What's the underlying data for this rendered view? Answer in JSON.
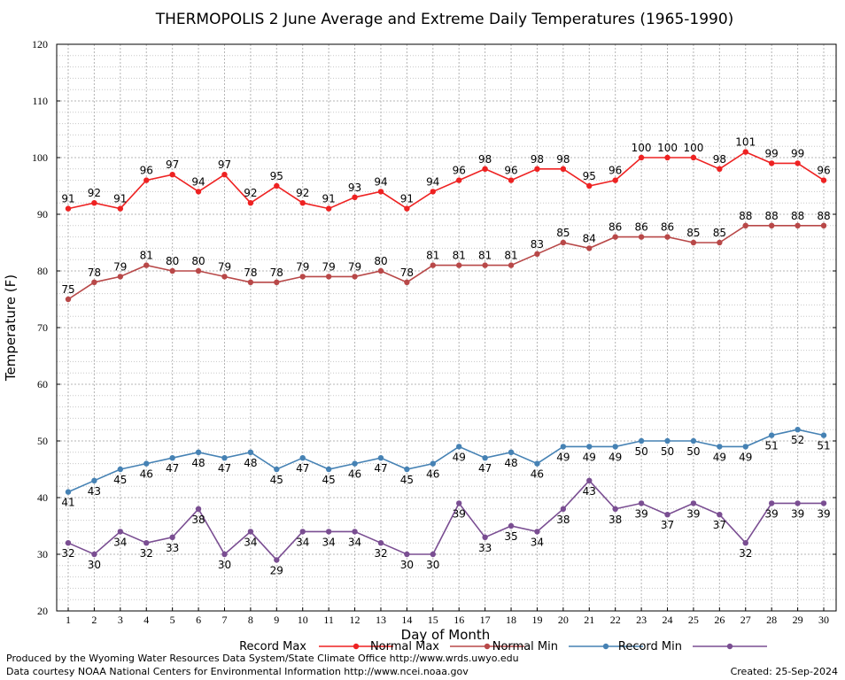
{
  "chart_data": {
    "type": "line",
    "title": "THERMOPOLIS 2 June Average and Extreme Daily Temperatures (1965-1990)",
    "xlabel": "Day of Month",
    "ylabel": "Temperature (F)",
    "x": [
      1,
      2,
      3,
      4,
      5,
      6,
      7,
      8,
      9,
      10,
      11,
      12,
      13,
      14,
      15,
      16,
      17,
      18,
      19,
      20,
      21,
      22,
      23,
      24,
      25,
      26,
      27,
      28,
      29,
      30
    ],
    "xlim": [
      1,
      30
    ],
    "ylim": [
      20,
      120
    ],
    "yticks": [
      20,
      30,
      40,
      50,
      60,
      70,
      80,
      90,
      100,
      110,
      120
    ],
    "grid": true,
    "legend_position": "bottom",
    "series": [
      {
        "name": "Record Max",
        "color": "#ee2222",
        "label_position": "above",
        "values": [
          91,
          92,
          91,
          96,
          97,
          94,
          97,
          92,
          95,
          92,
          91,
          93,
          94,
          91,
          94,
          96,
          98,
          96,
          98,
          98,
          95,
          96,
          100,
          100,
          100,
          98,
          101,
          99,
          99,
          96
        ]
      },
      {
        "name": "Normal Max",
        "color": "#b84848",
        "label_position": "above",
        "values": [
          75,
          78,
          79,
          81,
          80,
          80,
          79,
          78,
          78,
          79,
          79,
          79,
          80,
          78,
          81,
          81,
          81,
          81,
          83,
          85,
          84,
          86,
          86,
          86,
          85,
          85,
          88,
          88,
          88,
          88
        ]
      },
      {
        "name": "Normal Min",
        "color": "#4682b4",
        "label_position": "below",
        "values": [
          41,
          43,
          45,
          46,
          47,
          48,
          47,
          48,
          45,
          47,
          45,
          46,
          47,
          45,
          46,
          49,
          47,
          48,
          46,
          49,
          49,
          49,
          50,
          50,
          50,
          49,
          49,
          51,
          52,
          51
        ]
      },
      {
        "name": "Record Min",
        "color": "#7a4e92",
        "label_position": "below",
        "values": [
          32,
          30,
          34,
          32,
          33,
          38,
          30,
          34,
          29,
          34,
          34,
          34,
          32,
          30,
          30,
          39,
          33,
          35,
          34,
          38,
          43,
          38,
          39,
          37,
          39,
          37,
          32,
          39,
          39,
          39
        ]
      }
    ]
  },
  "footer": {
    "produced_by": "Produced by the Wyoming Water Resources Data System/State Climate Office http://www.wrds.uwyo.edu",
    "courtesy": "Data courtesy NOAA National Centers for Environmental Information http://www.ncei.noaa.gov",
    "created": "Created: 25-Sep-2024"
  }
}
